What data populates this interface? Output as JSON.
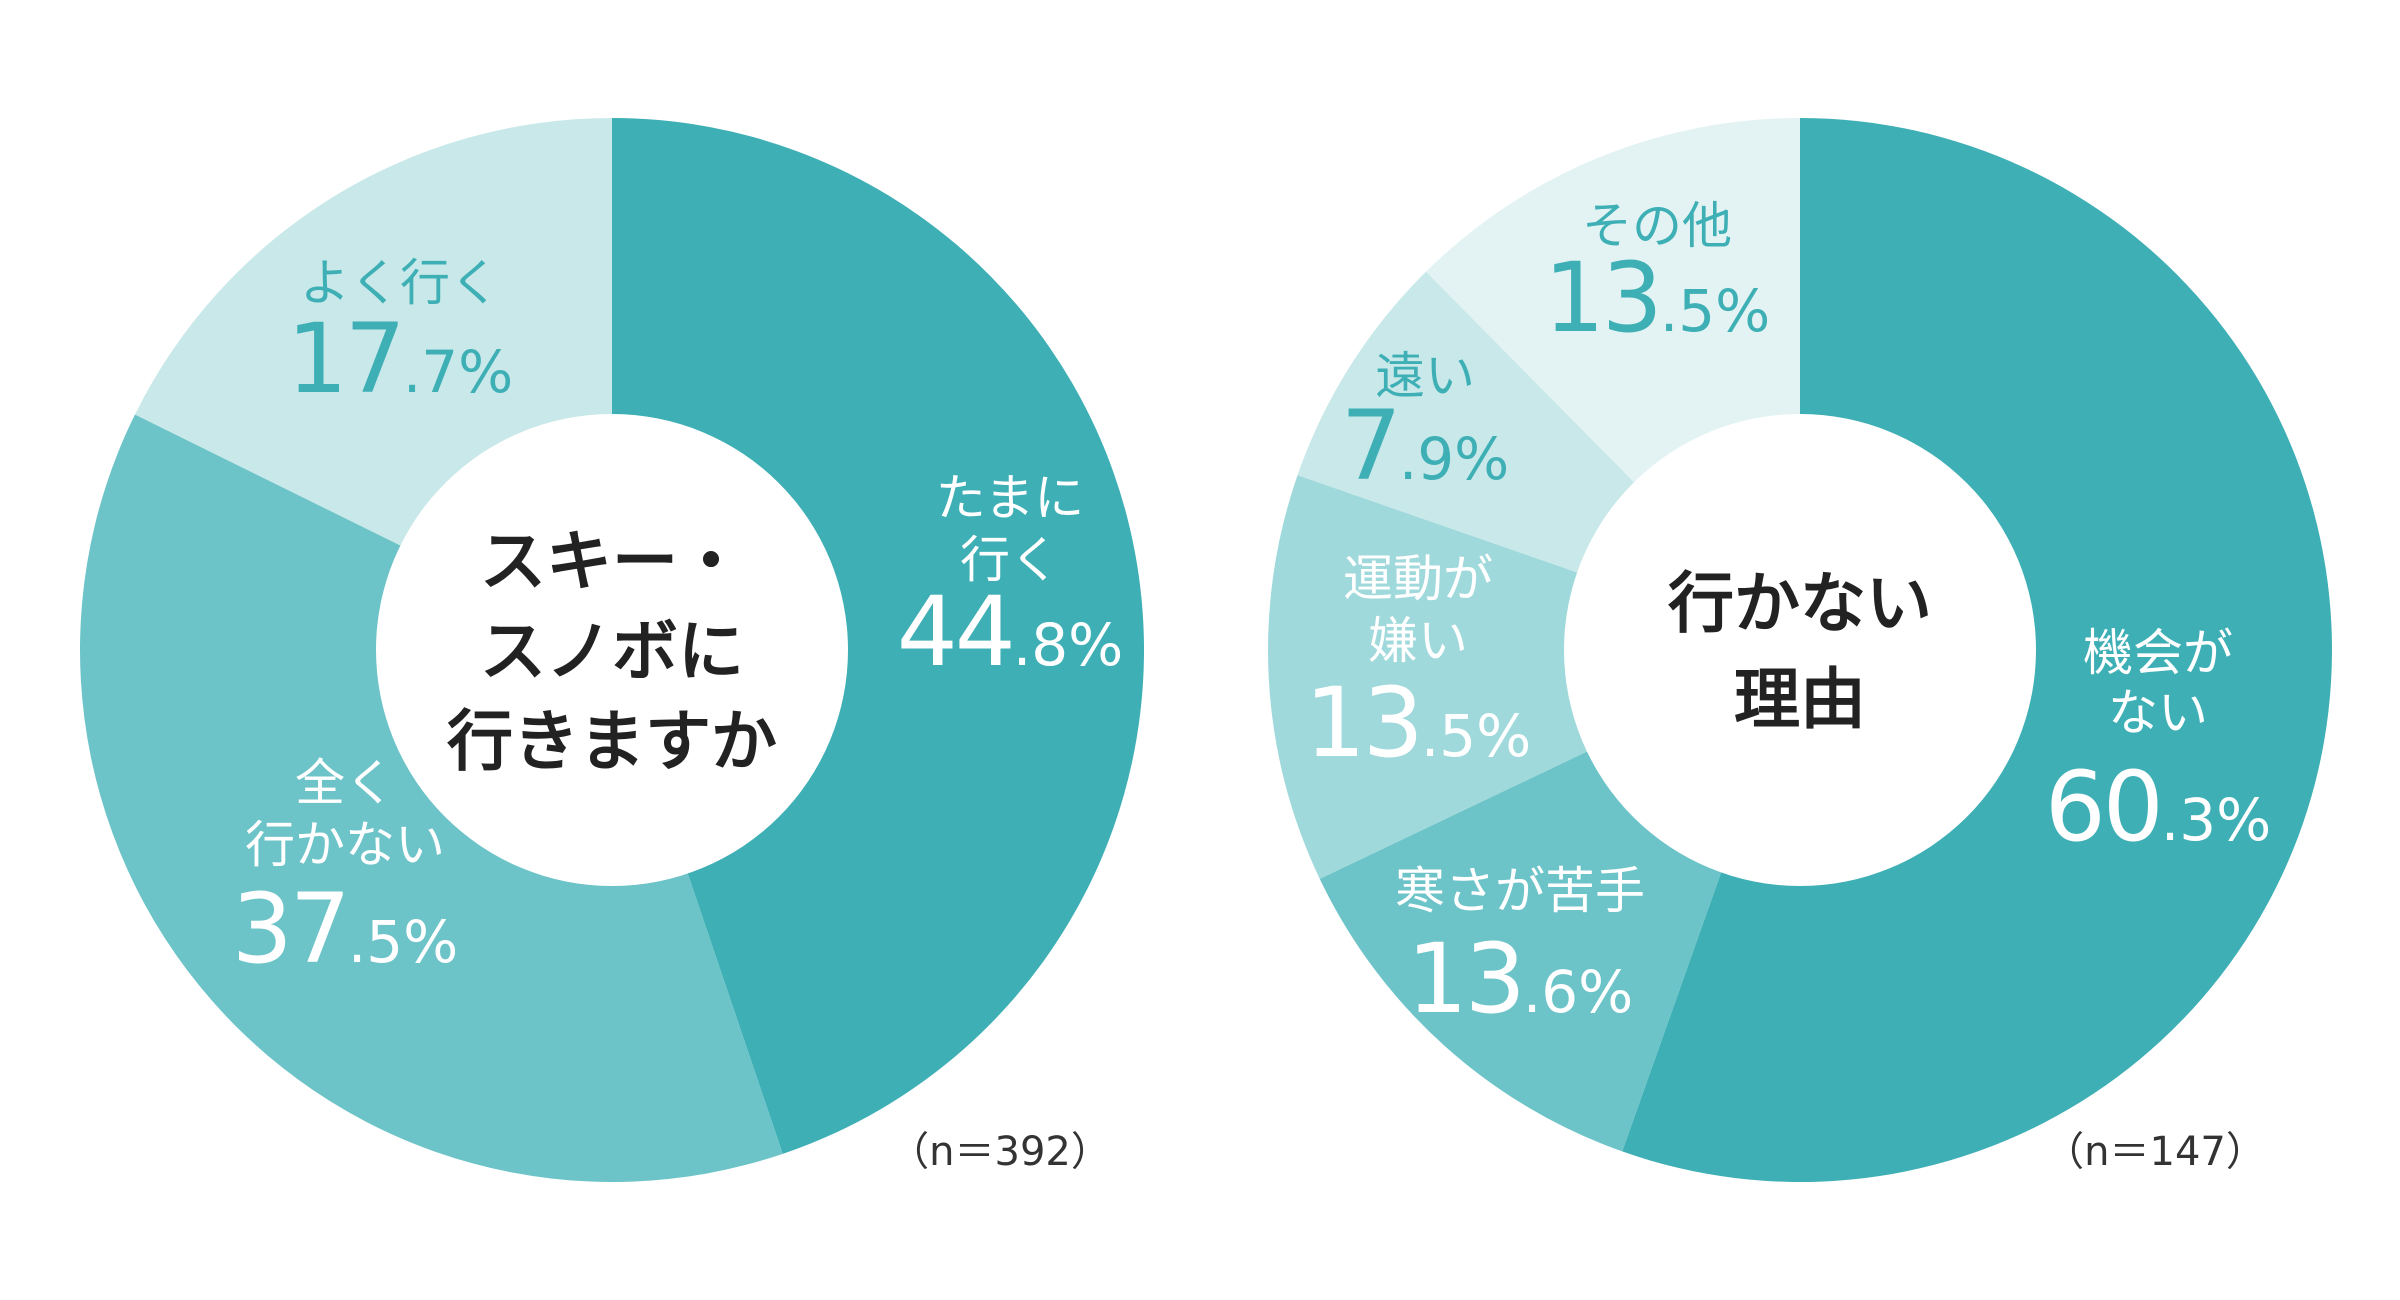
{
  "colors": {
    "dark": "#3dafb5",
    "mid": "#6cc4c8",
    "light": "#a0d9db",
    "pale": "#c8e8e9",
    "palest": "#e3f3f3",
    "white": "#ffffff"
  },
  "chart_data": [
    {
      "type": "pie",
      "center_label": [
        "スキー・",
        "スノボに",
        "行きますか"
      ],
      "n_label": "（n＝392）",
      "slices": [
        {
          "label": [
            "たまに",
            "行く"
          ],
          "value": 44.8,
          "value_int": "44",
          "value_dec": ".8%"
        },
        {
          "label": [
            "全く",
            "行かない"
          ],
          "value": 37.5,
          "value_int": "37",
          "value_dec": ".5%"
        },
        {
          "label": [
            "よく行く"
          ],
          "value": 17.7,
          "value_int": "17",
          "value_dec": ".7%"
        }
      ]
    },
    {
      "type": "pie",
      "center_label": [
        "行かない",
        "理由"
      ],
      "n_label": "（n＝147）",
      "slices": [
        {
          "label": [
            "機会が",
            "ない"
          ],
          "value": 60.3,
          "value_int": "60",
          "value_dec": ".3%"
        },
        {
          "label": [
            "寒さが苦手"
          ],
          "value": 13.6,
          "value_int": "13",
          "value_dec": ".6%"
        },
        {
          "label": [
            "運動が",
            "嫌い"
          ],
          "value": 13.5,
          "value_int": "13",
          "value_dec": ".5%"
        },
        {
          "label": [
            "遠い"
          ],
          "value": 7.9,
          "value_int": "7",
          "value_dec": ".9%"
        },
        {
          "label": [
            "その他"
          ],
          "value": 13.5,
          "value_int": "13",
          "value_dec": ".5%"
        }
      ]
    }
  ]
}
